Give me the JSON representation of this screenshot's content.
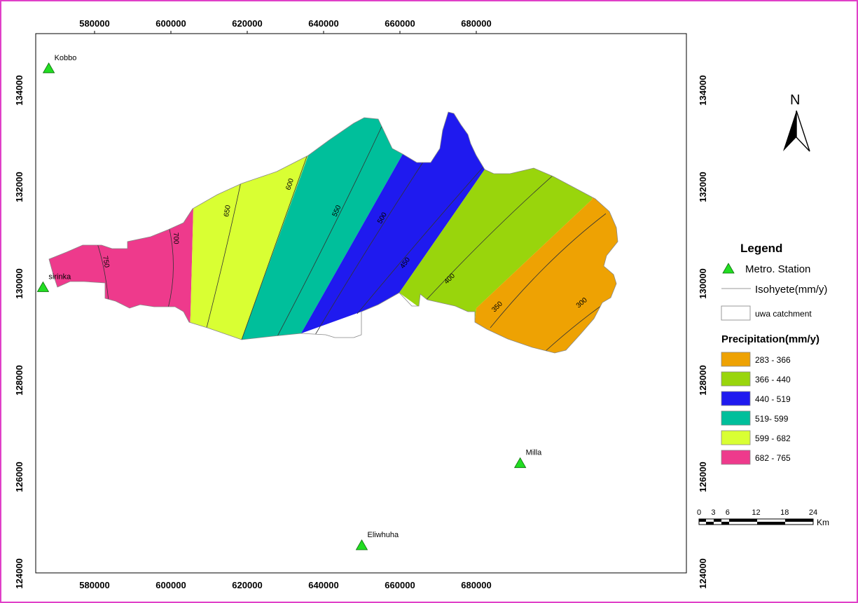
{
  "axes": {
    "x_ticks": [
      "580000",
      "600000",
      "620000",
      "640000",
      "660000",
      "680000"
    ],
    "y_ticks": [
      "124000",
      "126000",
      "128000",
      "130000",
      "132000",
      "134000"
    ]
  },
  "stations": [
    {
      "name": "Kobbo",
      "x": 568000,
      "y": 134450
    },
    {
      "name": "sirinka",
      "x": 566500,
      "y": 129920
    },
    {
      "name": "Milla",
      "x": 691500,
      "y": 126280
    },
    {
      "name": "Eliwhuha",
      "x": 650000,
      "y": 124580
    }
  ],
  "zones": [
    {
      "range": "682 - 765",
      "color": "#ee3a8c"
    },
    {
      "range": "599 - 682",
      "color": "#d9ff33"
    },
    {
      "range": "519- 599",
      "color": "#00bf9b"
    },
    {
      "range": "440 - 519",
      "color": "#1f1aef"
    },
    {
      "range": "366 - 440",
      "color": "#99d50c"
    },
    {
      "range": "283 - 366",
      "color": "#eea203"
    }
  ],
  "isohyets": [
    "750",
    "700",
    "650",
    "600",
    "550",
    "500",
    "450",
    "400",
    "350",
    "300"
  ],
  "north_arrow": {
    "label": "N",
    "icon": "north-arrow-icon"
  },
  "legend": {
    "title": "Legend",
    "station_label": "Metro. Station",
    "isohyete_label": "Isohyete(mm/y)",
    "catchment_label": "uwa catchment",
    "precip_title": "Precipitation(mm/y)",
    "items": [
      {
        "label": "283 - 366",
        "color": "#eea203"
      },
      {
        "label": "366 - 440",
        "color": "#99d50c"
      },
      {
        "label": "440 - 519",
        "color": "#1f1aef"
      },
      {
        "label": "519- 599",
        "color": "#00bf9b"
      },
      {
        "label": "599 - 682",
        "color": "#d9ff33"
      },
      {
        "label": "682 - 765",
        "color": "#ee3a8c"
      }
    ]
  },
  "scalebar": {
    "ticks": [
      "0",
      "3",
      "6",
      "12",
      "18",
      "24"
    ],
    "unit": "Km"
  },
  "colors": {
    "frame": "#e040c8",
    "station": "#22dd22",
    "isohyet": "#333333"
  }
}
